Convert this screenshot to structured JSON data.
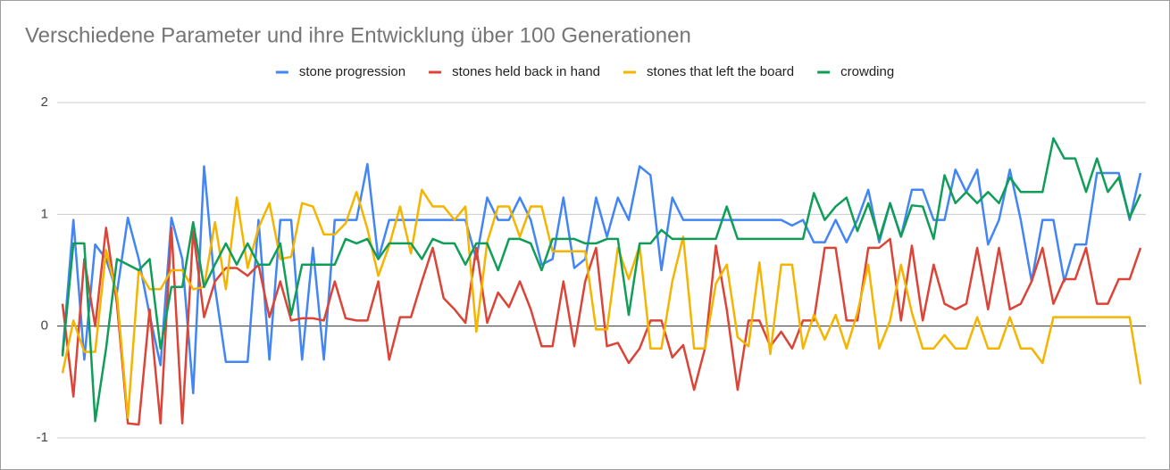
{
  "chart_data": {
    "type": "line",
    "title": "Verschiedene Parameter und ihre Entwicklung über 100 Generationen",
    "ylim": [
      -1,
      2
    ],
    "yticks": [
      -1,
      0,
      1,
      2
    ],
    "grid": true,
    "legend": "top",
    "series": [
      {
        "name": "stone progression",
        "color": "#4285f4",
        "values": [
          -0.25,
          0.95,
          -0.3,
          0.73,
          0.6,
          0.3,
          0.97,
          0.6,
          0.1,
          -0.35,
          0.97,
          0.6,
          -0.6,
          1.43,
          0.35,
          -0.32,
          -0.32,
          -0.32,
          0.95,
          -0.3,
          0.95,
          0.95,
          -0.3,
          0.7,
          -0.3,
          0.95,
          0.95,
          0.95,
          1.45,
          0.6,
          0.95,
          0.95,
          0.95,
          0.95,
          0.95,
          0.95,
          0.95,
          0.95,
          0.6,
          1.15,
          0.95,
          0.95,
          1.15,
          0.95,
          0.55,
          0.6,
          1.15,
          0.52,
          0.6,
          1.15,
          0.8,
          1.15,
          0.95,
          1.43,
          1.35,
          0.5,
          1.15,
          0.95,
          0.95,
          0.95,
          0.95,
          0.95,
          0.95,
          0.95,
          0.95,
          0.95,
          0.95,
          0.9,
          0.95,
          0.75,
          0.75,
          0.95,
          0.75,
          0.95,
          1.22,
          0.75,
          1.1,
          0.8,
          1.22,
          1.22,
          0.95,
          0.95,
          1.4,
          1.2,
          1.4,
          0.73,
          0.95,
          1.4,
          0.95,
          0.4,
          0.95,
          0.95,
          0.4,
          0.73,
          0.73,
          1.37,
          1.37,
          1.37,
          0.95,
          1.37
        ]
      },
      {
        "name": "stones held back in hand",
        "color": "#db4437",
        "values": [
          0.2,
          -0.63,
          0.6,
          0,
          0.88,
          0.2,
          -0.87,
          -0.88,
          0.15,
          -0.87,
          0.88,
          -0.87,
          0.85,
          0.08,
          0.4,
          0.52,
          0.52,
          0.45,
          0.55,
          0.08,
          0.4,
          0.05,
          0.07,
          0.07,
          0.05,
          0.4,
          0.07,
          0.05,
          0.05,
          0.4,
          -0.3,
          0.08,
          0.08,
          0.4,
          0.7,
          0.25,
          0.15,
          0.03,
          0.7,
          0.03,
          0.3,
          0.17,
          0.4,
          0.15,
          -0.18,
          -0.18,
          0.4,
          -0.18,
          0.4,
          0.7,
          -0.18,
          -0.15,
          -0.33,
          -0.2,
          0.05,
          0.05,
          -0.28,
          -0.17,
          -0.57,
          -0.2,
          0.72,
          0.15,
          -0.57,
          0.05,
          0.05,
          -0.18,
          -0.05,
          -0.2,
          0.05,
          0.05,
          0.7,
          0.7,
          0.05,
          0.05,
          0.7,
          0.7,
          0.78,
          0.05,
          0.72,
          0.05,
          0.55,
          0.2,
          0.15,
          0.2,
          0.7,
          0.15,
          0.7,
          0.15,
          0.2,
          0.4,
          0.7,
          0.2,
          0.42,
          0.42,
          0.7,
          0.2,
          0.2,
          0.42,
          0.42,
          0.7
        ]
      },
      {
        "name": "stones that left the board",
        "color": "#f4b400",
        "values": [
          -0.42,
          0.05,
          -0.23,
          -0.23,
          0.68,
          0.28,
          -0.82,
          0.5,
          0.33,
          0.33,
          0.5,
          0.5,
          0.33,
          0.35,
          0.93,
          0.33,
          1.15,
          0.52,
          0.88,
          1.1,
          0.6,
          0.62,
          1.1,
          1.07,
          0.82,
          0.82,
          0.92,
          1.2,
          0.87,
          0.45,
          0.72,
          1.07,
          0.65,
          1.22,
          1.07,
          1.07,
          0.95,
          1.07,
          -0.05,
          0.75,
          1.07,
          1.07,
          0.8,
          1.07,
          1.07,
          0.67,
          0.67,
          0.67,
          0.67,
          -0.03,
          -0.03,
          0.7,
          0.42,
          0.72,
          -0.2,
          -0.2,
          0.4,
          0.8,
          -0.2,
          -0.2,
          0.38,
          0.55,
          -0.1,
          -0.18,
          0.57,
          -0.25,
          0.55,
          0.55,
          -0.2,
          0.1,
          -0.12,
          0.1,
          -0.2,
          0.12,
          0.55,
          -0.2,
          0.05,
          0.55,
          0.12,
          -0.2,
          -0.2,
          -0.08,
          -0.2,
          -0.2,
          0.08,
          -0.2,
          -0.2,
          0.08,
          -0.2,
          -0.2,
          -0.33,
          0.08,
          0.08,
          0.08,
          0.08,
          0.08,
          0.08,
          0.08,
          0.08,
          -0.52
        ]
      },
      {
        "name": "crowding",
        "color": "#0f9d58",
        "values": [
          -0.27,
          0.74,
          0.74,
          -0.85,
          -0.2,
          0.6,
          0.55,
          0.5,
          0.6,
          -0.2,
          0.35,
          0.35,
          0.93,
          0.35,
          0.55,
          0.74,
          0.55,
          0.74,
          0.55,
          0.55,
          0.74,
          0.1,
          0.55,
          0.55,
          0.55,
          0.55,
          0.78,
          0.74,
          0.78,
          0.6,
          0.74,
          0.74,
          0.74,
          0.6,
          0.78,
          0.74,
          0.74,
          0.55,
          0.74,
          0.74,
          0.5,
          0.78,
          0.78,
          0.74,
          0.5,
          0.78,
          0.78,
          0.78,
          0.74,
          0.74,
          0.78,
          0.78,
          0.1,
          0.74,
          0.74,
          0.86,
          0.78,
          0.78,
          0.78,
          0.78,
          0.78,
          1.07,
          0.78,
          0.78,
          0.78,
          0.78,
          0.78,
          0.78,
          0.78,
          1.19,
          0.95,
          1.07,
          1.15,
          0.85,
          1.1,
          0.78,
          1.1,
          0.8,
          1.08,
          1.07,
          0.78,
          1.35,
          1.1,
          1.2,
          1.1,
          1.2,
          1.1,
          1.33,
          1.2,
          1.2,
          1.2,
          1.68,
          1.5,
          1.5,
          1.2,
          1.5,
          1.2,
          1.33,
          0.97,
          1.18
        ]
      }
    ]
  }
}
